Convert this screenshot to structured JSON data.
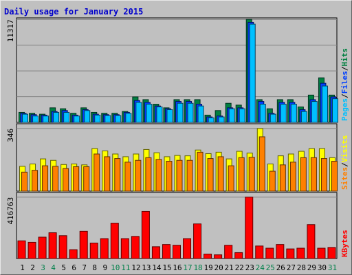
{
  "chart_data": {
    "type": "bar",
    "title": "Daily usage for January 2015",
    "days": [
      "1",
      "2",
      "3",
      "4",
      "5",
      "6",
      "7",
      "8",
      "9",
      "10",
      "11",
      "12",
      "13",
      "14",
      "15",
      "16",
      "17",
      "18",
      "19",
      "20",
      "21",
      "22",
      "23",
      "24",
      "25",
      "26",
      "27",
      "28",
      "29",
      "30",
      "31"
    ],
    "weekend_days": [
      "3",
      "4",
      "10",
      "11",
      "17",
      "18",
      "24",
      "25",
      "31"
    ],
    "panels": [
      {
        "name": "hits-files-pages",
        "max_label": "11317",
        "ymax": 11317,
        "legend": [
          "Pages",
          "/",
          "Files",
          "/",
          "Hits"
        ],
        "series": [
          {
            "name": "Hits",
            "values": [
              1100,
              1000,
              900,
              1600,
              1500,
              1000,
              1600,
              1100,
              1000,
              1000,
              1200,
              2800,
              2500,
              2000,
              1600,
              2500,
              2500,
              2500,
              800,
              1300,
              2100,
              1900,
              11317,
              2500,
              1500,
              2500,
              2500,
              1700,
              3000,
              4900,
              3000
            ]
          },
          {
            "name": "Files",
            "values": [
              1000,
              850,
              800,
              1200,
              1300,
              800,
              1400,
              900,
              850,
              850,
              1100,
              2400,
              2200,
              1800,
              1500,
              2300,
              2300,
              2000,
              600,
              700,
              1600,
              1600,
              11000,
              2300,
              1000,
              2200,
              2200,
              1400,
              2500,
              4300,
              2800
            ]
          },
          {
            "name": "Pages",
            "values": [
              900,
              700,
              700,
              1100,
              1100,
              700,
              1300,
              800,
              750,
              750,
              1000,
              2200,
              2000,
              1700,
              1400,
              2100,
              2100,
              1800,
              500,
              600,
              1500,
              1500,
              10800,
              2000,
              900,
              2000,
              2000,
              1200,
              2300,
              4000,
              2600
            ]
          }
        ]
      },
      {
        "name": "visits-sites",
        "max_label": "346",
        "ymax": 346,
        "legend": [
          "Sites",
          "/",
          "Visits"
        ],
        "series": [
          {
            "name": "Visits",
            "values": [
              137,
              150,
              178,
              170,
              147,
              150,
              145,
              235,
              222,
              205,
              190,
              205,
              230,
              212,
              190,
              197,
              195,
              227,
              207,
              215,
              178,
              220,
              210,
              346,
              150,
              195,
              205,
              220,
              235,
              235,
              185
            ]
          },
          {
            "name": "Sites",
            "values": [
              105,
              115,
              140,
              137,
              125,
              135,
              135,
              205,
              190,
              180,
              160,
              170,
              185,
              175,
              165,
              170,
              170,
              215,
              180,
              190,
              140,
              185,
              187,
              300,
              110,
              145,
              160,
              185,
              185,
              180,
              165
            ]
          }
        ]
      },
      {
        "name": "kbytes",
        "max_label": "416763",
        "ymax": 416763,
        "legend": [
          "KBytes"
        ],
        "series": [
          {
            "name": "KBytes",
            "values": [
              120000,
              110000,
              145000,
              175000,
              155000,
              60000,
              185000,
              105000,
              135000,
              240000,
              135000,
              150000,
              320000,
              80000,
              95000,
              90000,
              135000,
              235000,
              30000,
              25000,
              90000,
              40000,
              416763,
              85000,
              70000,
              95000,
              65000,
              70000,
              230000,
              70000,
              75000
            ]
          }
        ]
      }
    ]
  }
}
